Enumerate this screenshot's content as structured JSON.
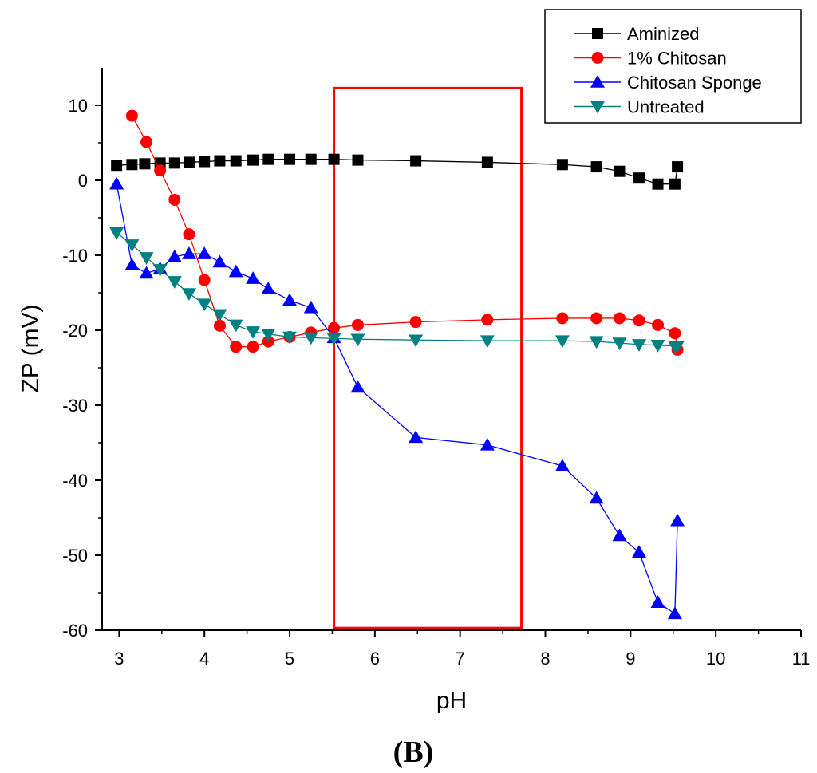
{
  "chart_data": {
    "type": "line",
    "xlabel": "pH",
    "ylabel": "ZP (mV)",
    "xlim": [
      2.8,
      11
    ],
    "ylim": [
      -60,
      15
    ],
    "xticks": [
      3,
      4,
      5,
      6,
      7,
      8,
      9,
      10,
      11
    ],
    "yticks": [
      10,
      0,
      -10,
      -20,
      -30,
      -40,
      -50,
      -60
    ],
    "panel_label": "(B)",
    "highlight_region": {
      "x": [
        5.52,
        7.72
      ],
      "y": [
        -59.7,
        12.3
      ],
      "color": "#ff0000"
    },
    "series": [
      {
        "name": "Aminized",
        "marker": "square",
        "color": "#000000",
        "x": [
          2.97,
          3.15,
          3.3,
          3.48,
          3.65,
          3.82,
          4.0,
          4.18,
          4.37,
          4.57,
          4.75,
          5.0,
          5.25,
          5.52,
          5.8,
          6.48,
          7.32,
          8.2,
          8.6,
          8.87,
          9.1,
          9.32,
          9.52,
          9.55
        ],
        "y": [
          2.0,
          2.1,
          2.2,
          2.3,
          2.3,
          2.4,
          2.5,
          2.6,
          2.6,
          2.7,
          2.8,
          2.8,
          2.8,
          2.8,
          2.7,
          2.6,
          2.4,
          2.1,
          1.8,
          1.2,
          0.3,
          -0.5,
          -0.5,
          1.8
        ]
      },
      {
        "name": "1% Chitosan",
        "marker": "circle",
        "color": "#ff0000",
        "x": [
          3.15,
          3.32,
          3.48,
          3.65,
          3.82,
          4.0,
          4.18,
          4.37,
          4.57,
          4.75,
          5.0,
          5.25,
          5.52,
          5.8,
          6.48,
          7.32,
          8.2,
          8.6,
          8.87,
          9.1,
          9.32,
          9.52,
          9.55
        ],
        "y": [
          8.6,
          5.1,
          1.3,
          -2.6,
          -7.2,
          -13.3,
          -19.4,
          -22.2,
          -22.2,
          -21.5,
          -20.9,
          -20.3,
          -19.7,
          -19.3,
          -18.9,
          -18.6,
          -18.4,
          -18.4,
          -18.4,
          -18.7,
          -19.3,
          -20.4,
          -22.6
        ]
      },
      {
        "name": "Chitosan Sponge",
        "marker": "triangle-up",
        "color": "#0000ff",
        "x": [
          2.97,
          3.15,
          3.32,
          3.48,
          3.65,
          3.82,
          4.0,
          4.18,
          4.37,
          4.57,
          4.75,
          5.0,
          5.25,
          5.52,
          5.8,
          6.48,
          7.32,
          8.2,
          8.6,
          8.87,
          9.1,
          9.32,
          9.52,
          9.55
        ],
        "y": [
          -0.5,
          -11.3,
          -12.4,
          -11.8,
          -10.2,
          -9.8,
          -9.8,
          -10.9,
          -12.2,
          -13.1,
          -14.5,
          -16.0,
          -17.0,
          -21.0,
          -27.6,
          -34.3,
          -35.3,
          -38.1,
          -42.4,
          -47.4,
          -49.6,
          -56.3,
          -57.8,
          -45.4
        ]
      },
      {
        "name": "Untreated",
        "marker": "triangle-down",
        "color": "#008080",
        "x": [
          2.97,
          3.15,
          3.32,
          3.48,
          3.65,
          3.82,
          4.0,
          4.18,
          4.37,
          4.57,
          4.75,
          5.0,
          5.25,
          5.52,
          5.8,
          6.48,
          7.32,
          8.2,
          8.6,
          8.87,
          9.1,
          9.32,
          9.52,
          9.55
        ],
        "y": [
          -7.0,
          -8.6,
          -10.3,
          -11.9,
          -13.5,
          -15.1,
          -16.5,
          -17.9,
          -19.3,
          -20.2,
          -20.5,
          -20.9,
          -21.0,
          -21.1,
          -21.2,
          -21.3,
          -21.4,
          -21.4,
          -21.5,
          -21.7,
          -21.9,
          -22.0,
          -22.1,
          -22.1
        ]
      }
    ]
  }
}
